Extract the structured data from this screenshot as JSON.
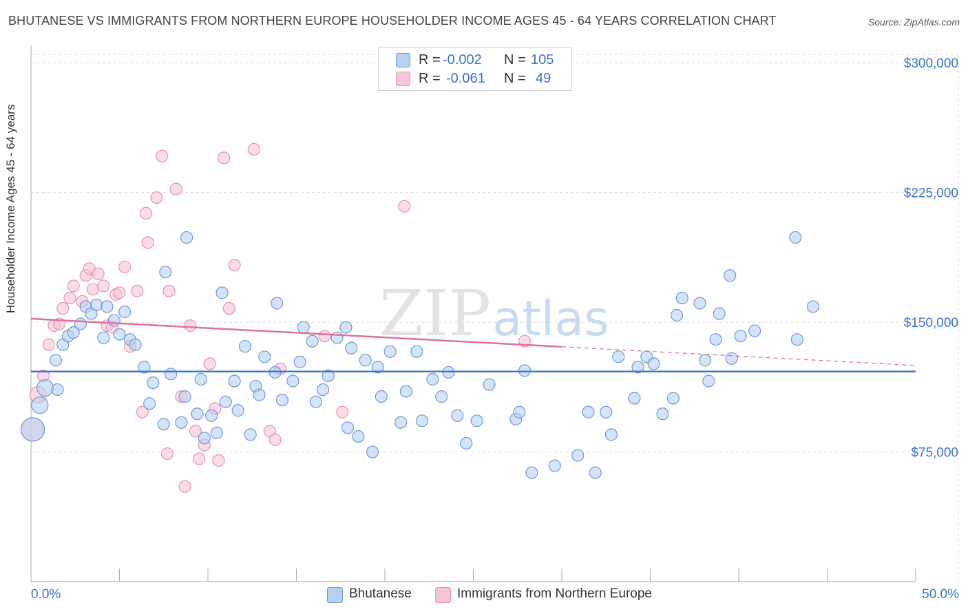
{
  "header": {
    "title": "BHUTANESE VS IMMIGRANTS FROM NORTHERN EUROPE HOUSEHOLDER INCOME AGES 45 - 64 YEARS CORRELATION CHART",
    "source": "Source: ZipAtlas.com"
  },
  "legend": {
    "rows": [
      {
        "r_label": "R =",
        "r_value": "-0.002",
        "n_label": "N =",
        "n_value": "105"
      },
      {
        "r_label": "R =",
        "r_value": "-0.061",
        "n_label": "N =",
        "n_value": "49"
      }
    ]
  },
  "bottom_legend": {
    "series1": "Bhutanese",
    "series2": "Immigrants from Northern Europe"
  },
  "watermark": {
    "zip": "ZIP",
    "atlas": "atlas"
  },
  "colors": {
    "blue_fill": "#b7d0f0",
    "blue_stroke": "#6f9ad6",
    "blue_line": "#3a78c9",
    "pink_fill": "#f7c5d5",
    "pink_stroke": "#e793b0",
    "pink_line": "#e0709a",
    "grid": "#dcdcdc",
    "axis_text": "#3a73c8"
  },
  "chart_data": {
    "type": "scatter",
    "title": "BHUTANESE VS IMMIGRANTS FROM NORTHERN EUROPE HOUSEHOLDER INCOME AGES 45 - 64 YEARS CORRELATION CHART",
    "xlabel": "",
    "ylabel": "Householder Income Ages 45 - 64 years",
    "xlim": [
      0,
      50
    ],
    "ylim": [
      0,
      312000
    ],
    "x_tick_labels": [
      "0.0%",
      "50.0%"
    ],
    "y_ticks": [
      75000,
      150000,
      225000,
      300000
    ],
    "y_tick_labels": [
      "$75,000",
      "$150,000",
      "$225,000",
      "$300,000"
    ],
    "series": [
      {
        "name": "Bhutanese",
        "r": -0.002,
        "n": 105,
        "trend": {
          "x": [
            0,
            50
          ],
          "y": [
            121500,
            121500
          ],
          "solid_until": 50
        },
        "points": [
          {
            "x": 0.1,
            "y": 88000,
            "big": 2
          },
          {
            "x": 0.5,
            "y": 102000,
            "big": 1
          },
          {
            "x": 0.8,
            "y": 112000,
            "big": 1
          },
          {
            "x": 1.5,
            "y": 111000
          },
          {
            "x": 1.4,
            "y": 128000
          },
          {
            "x": 1.8,
            "y": 137000
          },
          {
            "x": 2.1,
            "y": 142000
          },
          {
            "x": 2.4,
            "y": 144000
          },
          {
            "x": 2.8,
            "y": 149000
          },
          {
            "x": 3.1,
            "y": 159000
          },
          {
            "x": 3.4,
            "y": 155000
          },
          {
            "x": 3.7,
            "y": 160000
          },
          {
            "x": 4.1,
            "y": 141000
          },
          {
            "x": 4.3,
            "y": 159000
          },
          {
            "x": 4.7,
            "y": 151000
          },
          {
            "x": 5.0,
            "y": 143000
          },
          {
            "x": 5.3,
            "y": 156000
          },
          {
            "x": 5.6,
            "y": 140000
          },
          {
            "x": 5.9,
            "y": 137000
          },
          {
            "x": 6.4,
            "y": 124000
          },
          {
            "x": 6.7,
            "y": 103000
          },
          {
            "x": 6.9,
            "y": 115000
          },
          {
            "x": 7.5,
            "y": 91000
          },
          {
            "x": 7.6,
            "y": 179000
          },
          {
            "x": 7.9,
            "y": 120000
          },
          {
            "x": 8.5,
            "y": 92000
          },
          {
            "x": 8.7,
            "y": 107000
          },
          {
            "x": 8.8,
            "y": 199000
          },
          {
            "x": 9.4,
            "y": 97000
          },
          {
            "x": 9.6,
            "y": 117000
          },
          {
            "x": 9.8,
            "y": 83000
          },
          {
            "x": 10.2,
            "y": 96000
          },
          {
            "x": 10.5,
            "y": 86000
          },
          {
            "x": 10.8,
            "y": 167000
          },
          {
            "x": 11.0,
            "y": 104000
          },
          {
            "x": 11.5,
            "y": 116000
          },
          {
            "x": 11.7,
            "y": 99000
          },
          {
            "x": 12.1,
            "y": 136000
          },
          {
            "x": 12.4,
            "y": 85000
          },
          {
            "x": 12.7,
            "y": 113000
          },
          {
            "x": 12.9,
            "y": 108000
          },
          {
            "x": 13.2,
            "y": 130000
          },
          {
            "x": 13.8,
            "y": 121000
          },
          {
            "x": 13.9,
            "y": 161000
          },
          {
            "x": 14.2,
            "y": 105000
          },
          {
            "x": 14.8,
            "y": 116000
          },
          {
            "x": 15.2,
            "y": 127000
          },
          {
            "x": 15.4,
            "y": 147000
          },
          {
            "x": 15.9,
            "y": 139000
          },
          {
            "x": 16.1,
            "y": 104000
          },
          {
            "x": 16.5,
            "y": 111000
          },
          {
            "x": 16.8,
            "y": 119000
          },
          {
            "x": 17.3,
            "y": 141000
          },
          {
            "x": 17.8,
            "y": 147000
          },
          {
            "x": 17.9,
            "y": 89000
          },
          {
            "x": 18.1,
            "y": 135000
          },
          {
            "x": 18.5,
            "y": 84000
          },
          {
            "x": 18.9,
            "y": 128000
          },
          {
            "x": 19.3,
            "y": 75000
          },
          {
            "x": 19.6,
            "y": 124000
          },
          {
            "x": 19.8,
            "y": 107000
          },
          {
            "x": 20.3,
            "y": 133000
          },
          {
            "x": 20.9,
            "y": 92000
          },
          {
            "x": 21.2,
            "y": 110000
          },
          {
            "x": 21.8,
            "y": 133000
          },
          {
            "x": 22.1,
            "y": 93000
          },
          {
            "x": 22.7,
            "y": 117000
          },
          {
            "x": 23.2,
            "y": 107000
          },
          {
            "x": 23.6,
            "y": 121000
          },
          {
            "x": 24.1,
            "y": 96000
          },
          {
            "x": 24.6,
            "y": 80000
          },
          {
            "x": 25.2,
            "y": 93000
          },
          {
            "x": 25.9,
            "y": 114000
          },
          {
            "x": 27.4,
            "y": 94000
          },
          {
            "x": 27.6,
            "y": 98000
          },
          {
            "x": 27.9,
            "y": 122000
          },
          {
            "x": 28.3,
            "y": 63000
          },
          {
            "x": 29.6,
            "y": 67000
          },
          {
            "x": 30.9,
            "y": 73000
          },
          {
            "x": 31.5,
            "y": 98000
          },
          {
            "x": 31.9,
            "y": 63000
          },
          {
            "x": 32.5,
            "y": 98000
          },
          {
            "x": 32.8,
            "y": 85000
          },
          {
            "x": 33.2,
            "y": 130000
          },
          {
            "x": 34.1,
            "y": 106000
          },
          {
            "x": 34.3,
            "y": 124000
          },
          {
            "x": 34.8,
            "y": 130000
          },
          {
            "x": 35.2,
            "y": 126000
          },
          {
            "x": 35.7,
            "y": 97000
          },
          {
            "x": 36.3,
            "y": 106000
          },
          {
            "x": 36.5,
            "y": 154000
          },
          {
            "x": 36.8,
            "y": 164000
          },
          {
            "x": 37.8,
            "y": 161000
          },
          {
            "x": 38.1,
            "y": 128000
          },
          {
            "x": 38.3,
            "y": 116000
          },
          {
            "x": 38.7,
            "y": 140000
          },
          {
            "x": 38.9,
            "y": 155000
          },
          {
            "x": 39.5,
            "y": 177000
          },
          {
            "x": 39.6,
            "y": 129000
          },
          {
            "x": 40.1,
            "y": 142000
          },
          {
            "x": 40.9,
            "y": 145000
          },
          {
            "x": 43.2,
            "y": 199000
          },
          {
            "x": 43.3,
            "y": 140000
          },
          {
            "x": 44.2,
            "y": 159000
          }
        ]
      },
      {
        "name": "Immigrants from Northern Europe",
        "r": -0.061,
        "n": 49,
        "trend": {
          "x": [
            0,
            50
          ],
          "y": [
            152000,
            125000
          ],
          "solid_until": 30
        },
        "points": [
          {
            "x": 0.1,
            "y": 88000,
            "big": 2
          },
          {
            "x": 0.4,
            "y": 108000,
            "big": 1
          },
          {
            "x": 0.7,
            "y": 119000
          },
          {
            "x": 1.0,
            "y": 137000
          },
          {
            "x": 1.3,
            "y": 148000
          },
          {
            "x": 1.6,
            "y": 149000
          },
          {
            "x": 1.8,
            "y": 158000
          },
          {
            "x": 2.2,
            "y": 164000
          },
          {
            "x": 2.4,
            "y": 171000
          },
          {
            "x": 2.9,
            "y": 162000
          },
          {
            "x": 3.1,
            "y": 177000
          },
          {
            "x": 3.3,
            "y": 181000
          },
          {
            "x": 3.5,
            "y": 169000
          },
          {
            "x": 3.8,
            "y": 178000
          },
          {
            "x": 4.1,
            "y": 171000
          },
          {
            "x": 4.3,
            "y": 148000
          },
          {
            "x": 4.6,
            "y": 147000
          },
          {
            "x": 4.8,
            "y": 166000
          },
          {
            "x": 5.0,
            "y": 167000
          },
          {
            "x": 5.3,
            "y": 182000
          },
          {
            "x": 5.6,
            "y": 136000
          },
          {
            "x": 6.0,
            "y": 168000
          },
          {
            "x": 6.3,
            "y": 98000
          },
          {
            "x": 6.5,
            "y": 213000
          },
          {
            "x": 6.6,
            "y": 196000
          },
          {
            "x": 7.1,
            "y": 222000
          },
          {
            "x": 7.4,
            "y": 246000
          },
          {
            "x": 7.7,
            "y": 74000
          },
          {
            "x": 7.8,
            "y": 168000
          },
          {
            "x": 8.2,
            "y": 227000
          },
          {
            "x": 8.5,
            "y": 107000
          },
          {
            "x": 8.7,
            "y": 55000
          },
          {
            "x": 9.0,
            "y": 148000
          },
          {
            "x": 9.3,
            "y": 87000
          },
          {
            "x": 9.5,
            "y": 71000
          },
          {
            "x": 9.8,
            "y": 79000
          },
          {
            "x": 10.1,
            "y": 126000
          },
          {
            "x": 10.4,
            "y": 100000
          },
          {
            "x": 10.6,
            "y": 70000
          },
          {
            "x": 10.9,
            "y": 245000
          },
          {
            "x": 11.2,
            "y": 158000
          },
          {
            "x": 11.5,
            "y": 183000
          },
          {
            "x": 12.6,
            "y": 250000
          },
          {
            "x": 13.5,
            "y": 87000
          },
          {
            "x": 13.8,
            "y": 82000
          },
          {
            "x": 14.1,
            "y": 123000
          },
          {
            "x": 16.6,
            "y": 142000
          },
          {
            "x": 17.6,
            "y": 98000
          },
          {
            "x": 21.1,
            "y": 217000
          },
          {
            "x": 27.9,
            "y": 139000
          }
        ]
      }
    ]
  }
}
